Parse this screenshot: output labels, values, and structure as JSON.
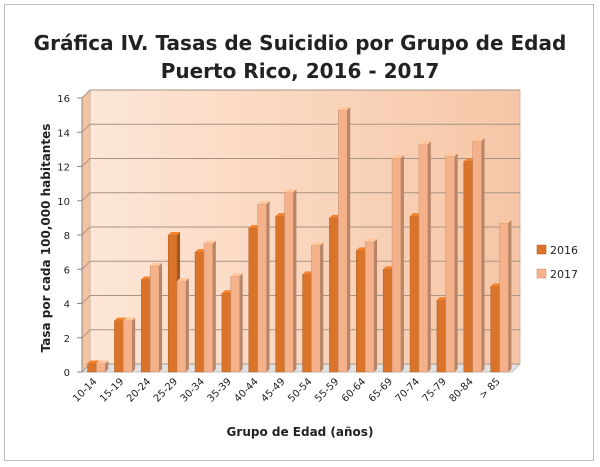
{
  "chart_data": {
    "type": "bar",
    "title": "Gráfica IV. Tasas de Suicidio por Grupo de Edad",
    "subtitle": "Puerto Rico, 2016 - 2017",
    "xlabel": "Grupo de Edad (años)",
    "ylabel": "Tasa por cada 100,000 habitantes",
    "ylim": [
      0,
      16
    ],
    "yticks": [
      0,
      2,
      4,
      6,
      8,
      10,
      12,
      14,
      16
    ],
    "categories": [
      "10-14",
      "15-19",
      "20-24",
      "25-29",
      "30-34",
      "35-39",
      "40-44",
      "45-49",
      "50-54",
      "55-59",
      "60-64",
      "65-69",
      "70-74",
      "75-79",
      "80-84",
      "> 85"
    ],
    "series": [
      {
        "name": "2016",
        "color": "#d9742a",
        "values": [
          0.5,
          3.0,
          5.4,
          8.0,
          7.0,
          4.6,
          8.4,
          9.1,
          5.7,
          9.0,
          7.1,
          6.0,
          9.1,
          4.2,
          12.3,
          5.0
        ]
      },
      {
        "name": "2017",
        "color": "#f5b18a",
        "values": [
          0.5,
          3.0,
          6.2,
          5.3,
          7.5,
          5.6,
          9.8,
          10.5,
          7.4,
          15.3,
          7.6,
          12.5,
          13.3,
          12.6,
          13.5,
          8.7
        ]
      }
    ],
    "grid": true,
    "legend": "right"
  }
}
